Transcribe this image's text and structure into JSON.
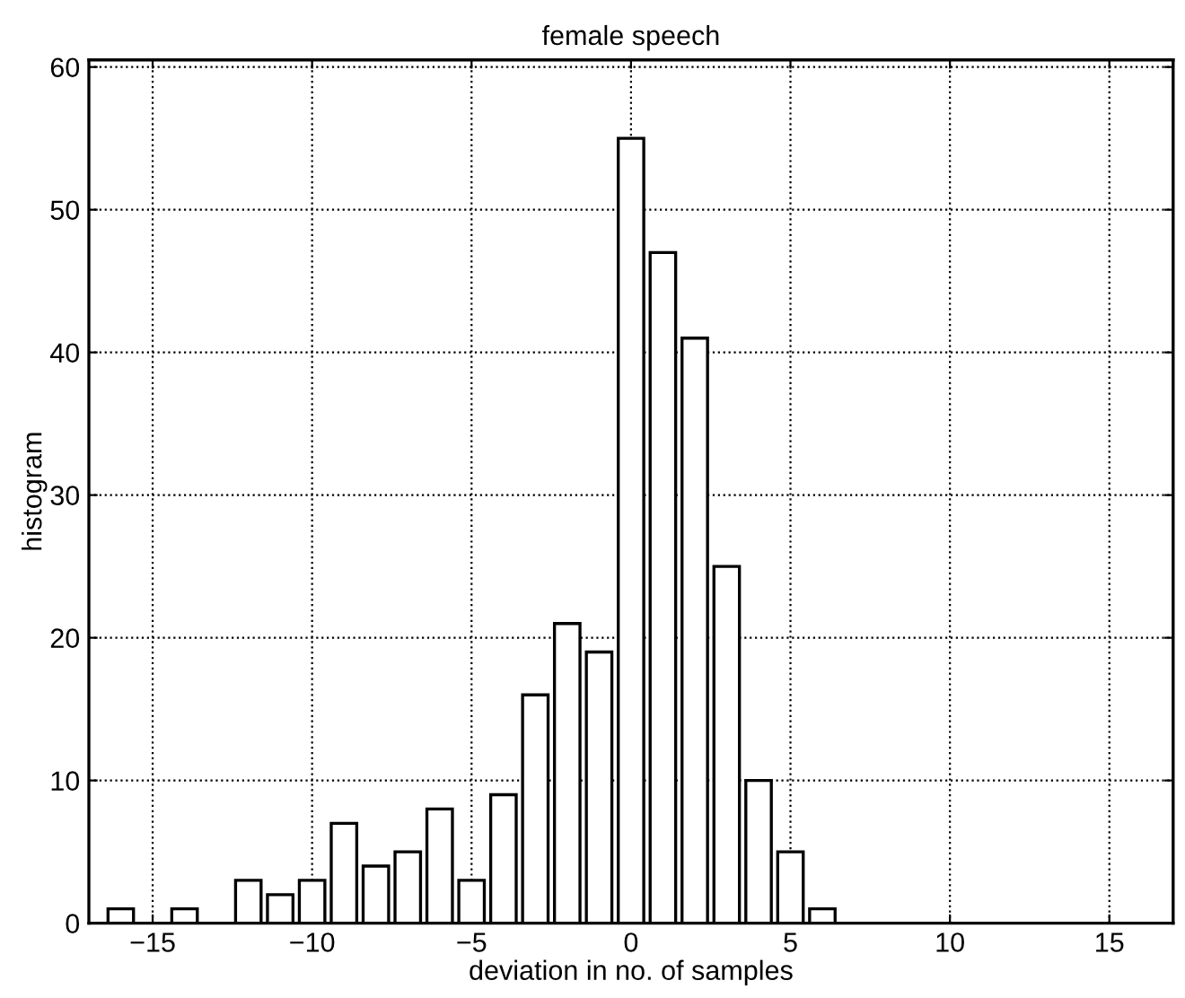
{
  "chart_data": {
    "type": "histogram",
    "title": "female speech",
    "xlabel": "deviation in no. of samples",
    "ylabel": "histogram",
    "bins": [
      -16.5,
      -15.5,
      -14.5,
      -13.5,
      -12.5,
      -11.5,
      -10.5,
      -9.5,
      -8.5,
      -7.5,
      -6.5,
      -5.5,
      -4.5,
      -3.5,
      -2.5,
      -1.5,
      -0.5,
      0.5,
      1.5,
      2.5,
      3.5,
      4.5,
      5.5,
      6.5
    ],
    "values": [
      1,
      0,
      1,
      0,
      3,
      2,
      3,
      7,
      4,
      5,
      8,
      3,
      9,
      16,
      21,
      19,
      55,
      47,
      41,
      25,
      10,
      5,
      1
    ],
    "color": "#ffffff",
    "xlim": [
      -17,
      17
    ],
    "xticks": [
      -15,
      -10,
      -5,
      0,
      5,
      10,
      15
    ],
    "ylim": [
      0,
      60.5
    ],
    "yticks": [
      0,
      10,
      20,
      30,
      40,
      50,
      60
    ],
    "grid": true
  }
}
